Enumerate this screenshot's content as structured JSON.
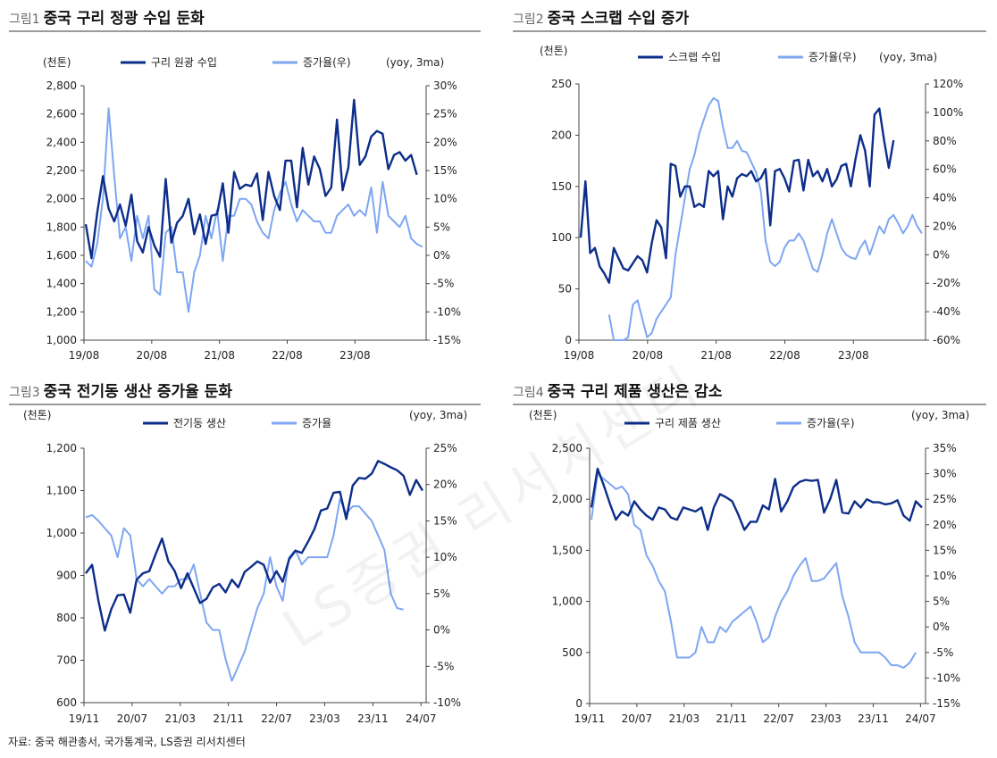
{
  "colors": {
    "dark_series": "#0c2d8a",
    "light_series": "#7ea6f2",
    "rule": "#9a9a9a"
  },
  "watermark": "LS증권 리서치센터",
  "source": "자료: 중국 해관총서, 국가통계국, LS증권 리서치센터",
  "panels": [
    {
      "num": "그림1",
      "title": "중국 구리 정광 수입 둔화"
    },
    {
      "num": "그림2",
      "title": "중국 스크랩 수입 증가"
    },
    {
      "num": "그림3",
      "title": "중국 전기동 생산 증가율 둔화"
    },
    {
      "num": "그림4",
      "title": "중국 구리 제품 생산은 감소"
    }
  ],
  "chart_data": [
    {
      "type": "line",
      "title": "중국 구리 정광 수입 둔화",
      "left_unit": "(천톤)",
      "right_unit": "(yoy, 3ma)",
      "left_ticks": [
        "1,000",
        "1,200",
        "1,400",
        "1,600",
        "1,800",
        "2,000",
        "2,200",
        "2,400",
        "2,600",
        "2,800"
      ],
      "right_ticks": [
        "-15%",
        "-10%",
        "-5%",
        "0%",
        "5%",
        "10%",
        "15%",
        "20%",
        "25%",
        "30%"
      ],
      "x_ticks": [
        "19/08",
        "20/08",
        "21/08",
        "22/08",
        "23/08"
      ],
      "ylim_left": [
        1000,
        2800
      ],
      "ylim_right": [
        -15,
        30
      ],
      "series": [
        {
          "name": "구리 원광 수입",
          "axis": "left",
          "start_index": 0,
          "values": [
            1820,
            1580,
            1900,
            2160,
            1930,
            1840,
            1960,
            1810,
            2030,
            1700,
            1620,
            1800,
            1670,
            1590,
            2140,
            1690,
            1830,
            1880,
            2000,
            1750,
            1890,
            1680,
            1880,
            1890,
            2110,
            1760,
            2190,
            2070,
            2100,
            2090,
            2180,
            1850,
            2190,
            2020,
            1920,
            2270,
            2270,
            1940,
            2360,
            2100,
            2300,
            2210,
            2020,
            2080,
            2560,
            2060,
            2220,
            2700,
            2240,
            2300,
            2440,
            2480,
            2460,
            2210,
            2310,
            2330,
            2270,
            2310,
            2170
          ]
        },
        {
          "name": "증가율(우)",
          "axis": "right",
          "start_index": 0,
          "values": [
            -1,
            -2,
            2,
            10,
            26,
            14,
            3,
            5,
            -1,
            7,
            3,
            7,
            -6,
            -7,
            4,
            5,
            -3,
            -3,
            -10,
            -3,
            0,
            7,
            3,
            8,
            -1,
            7,
            7,
            10,
            10,
            9,
            6,
            4,
            3,
            8,
            11,
            13,
            9,
            6,
            8,
            7,
            6,
            6,
            4,
            4,
            7,
            8,
            9,
            7,
            8,
            7,
            12,
            4,
            13,
            7,
            6,
            5,
            7,
            3,
            2,
            1.5
          ]
        }
      ]
    },
    {
      "type": "line",
      "title": "중국 스크랩 수입 증가",
      "left_unit": "(천톤)",
      "right_unit": "(yoy, 3ma)",
      "left_ticks": [
        "0",
        "50",
        "100",
        "150",
        "200",
        "250"
      ],
      "right_ticks": [
        "-60%",
        "-40%",
        "-20%",
        "0%",
        "20%",
        "40%",
        "60%",
        "80%",
        "100%",
        "120%"
      ],
      "x_ticks": [
        "19/08",
        "20/08",
        "21/08",
        "22/08",
        "23/08"
      ],
      "ylim_left": [
        0,
        250
      ],
      "ylim_right": [
        -60,
        120
      ],
      "series": [
        {
          "name": "스크랩 수입",
          "axis": "left",
          "start_index": 0,
          "values": [
            100,
            155,
            85,
            90,
            72,
            65,
            56,
            90,
            80,
            70,
            68,
            75,
            82,
            78,
            66,
            95,
            117,
            110,
            80,
            172,
            170,
            140,
            150,
            150,
            130,
            133,
            130,
            165,
            160,
            165,
            118,
            150,
            140,
            158,
            162,
            160,
            165,
            155,
            158,
            167,
            112,
            165,
            167,
            158,
            145,
            175,
            176,
            146,
            176,
            160,
            165,
            155,
            167,
            150,
            157,
            170,
            172,
            150,
            177,
            200,
            185,
            150,
            220,
            226,
            195,
            168,
            195
          ]
        },
        {
          "name": "증가율(우)",
          "axis": "right",
          "start_index": 6,
          "values": [
            -42,
            -65,
            -70,
            -65,
            -58,
            -35,
            -32,
            -45,
            -58,
            -55,
            -45,
            -40,
            -35,
            -30,
            0,
            20,
            40,
            60,
            70,
            85,
            95,
            105,
            110,
            108,
            90,
            75,
            75,
            80,
            73,
            72,
            65,
            58,
            45,
            10,
            -5,
            -8,
            -5,
            5,
            10,
            10,
            15,
            10,
            0,
            -10,
            -12,
            0,
            15,
            25,
            15,
            5,
            0,
            -2,
            -3,
            5,
            10,
            0,
            10,
            20,
            15,
            25,
            28,
            22,
            15,
            20,
            28,
            20,
            15
          ]
        }
      ]
    },
    {
      "type": "line",
      "title": "중국 전기동 생산 증가율 둔화",
      "left_unit": "(천톤)",
      "right_unit": "(yoy, 3ma)",
      "left_ticks": [
        "600",
        "700",
        "800",
        "900",
        "1,000",
        "1,100",
        "1,200"
      ],
      "right_ticks": [
        "-10%",
        "-5%",
        "0%",
        "5%",
        "10%",
        "15%",
        "20%",
        "25%"
      ],
      "x_ticks": [
        "19/11",
        "20/07",
        "21/03",
        "21/11",
        "22/07",
        "23/03",
        "23/11",
        "24/07"
      ],
      "ylim_left": [
        600,
        1200
      ],
      "ylim_right": [
        -10,
        25
      ],
      "series": [
        {
          "name": "전기동 생산",
          "axis": "left",
          "start_index": 0,
          "values": [
            905,
            925,
            840,
            770,
            820,
            853,
            855,
            812,
            890,
            905,
            910,
            950,
            987,
            933,
            910,
            870,
            905,
            870,
            835,
            845,
            872,
            880,
            860,
            890,
            872,
            908,
            920,
            933,
            925,
            883,
            910,
            885,
            938,
            958,
            953,
            980,
            1010,
            1053,
            1058,
            1095,
            1097,
            1033,
            1112,
            1130,
            1128,
            1140,
            1170,
            1163,
            1155,
            1148,
            1135,
            1090,
            1125,
            1100
          ]
        },
        {
          "name": "증가율",
          "axis": "right",
          "start_index": 0,
          "values": [
            15.5,
            15.8,
            15,
            14,
            13,
            10,
            14,
            13,
            7,
            6,
            7,
            6,
            5,
            6,
            6,
            7,
            7,
            9,
            5,
            1,
            0,
            0,
            -4,
            -7,
            -5,
            -3,
            0,
            3,
            5,
            10,
            6,
            4,
            10,
            11,
            9,
            10,
            10,
            10,
            10,
            13,
            18,
            16,
            17,
            17,
            16,
            15,
            13,
            11,
            5,
            3,
            2.8
          ]
        }
      ]
    },
    {
      "type": "line",
      "title": "중국 구리 제품 생산은 감소",
      "left_unit": "(천톤)",
      "right_unit": "(yoy, 3ma)",
      "left_ticks": [
        "0",
        "500",
        "1,000",
        "1,500",
        "2,000",
        "2,500"
      ],
      "right_ticks": [
        "-15%",
        "-10%",
        "-5%",
        "0%",
        "5%",
        "10%",
        "15%",
        "20%",
        "25%",
        "30%",
        "35%"
      ],
      "x_ticks": [
        "19/11",
        "20/07",
        "21/03",
        "21/11",
        "22/07",
        "23/03",
        "23/11",
        "24/07"
      ],
      "ylim_left": [
        0,
        2500
      ],
      "ylim_right": [
        -15,
        35
      ],
      "series": [
        {
          "name": "구리 제품 생산",
          "axis": "left",
          "start_index": 0,
          "values": [
            1920,
            2300,
            2140,
            1960,
            1800,
            1880,
            1840,
            1980,
            1900,
            1840,
            1800,
            1920,
            1900,
            1820,
            1800,
            1920,
            1900,
            1880,
            1920,
            1700,
            1920,
            2050,
            2020,
            1980,
            1850,
            1700,
            1780,
            1780,
            1940,
            1900,
            2200,
            1880,
            1980,
            2120,
            2170,
            2190,
            2180,
            2190,
            1870,
            2000,
            2190,
            1870,
            1860,
            1980,
            1920,
            2000,
            1970,
            1970,
            1950,
            1960,
            1990,
            1840,
            1790,
            1980,
            1920
          ]
        },
        {
          "name": "증가율(우)",
          "axis": "right",
          "start_index": 0,
          "values": [
            21,
            30,
            29,
            28,
            27,
            27.5,
            26,
            20,
            19,
            14,
            12,
            9,
            7,
            1,
            -6,
            -6,
            -6,
            -5,
            0,
            -3,
            -3,
            0,
            -1,
            1,
            2,
            3,
            4,
            1,
            -3,
            -2,
            2,
            5,
            7,
            10,
            12,
            13.5,
            9,
            9,
            9.5,
            11,
            12.5,
            6,
            2,
            -3,
            -5,
            -5,
            -5,
            -5,
            -6,
            -7.5,
            -7.5,
            -8,
            -7,
            -5
          ]
        }
      ]
    }
  ]
}
